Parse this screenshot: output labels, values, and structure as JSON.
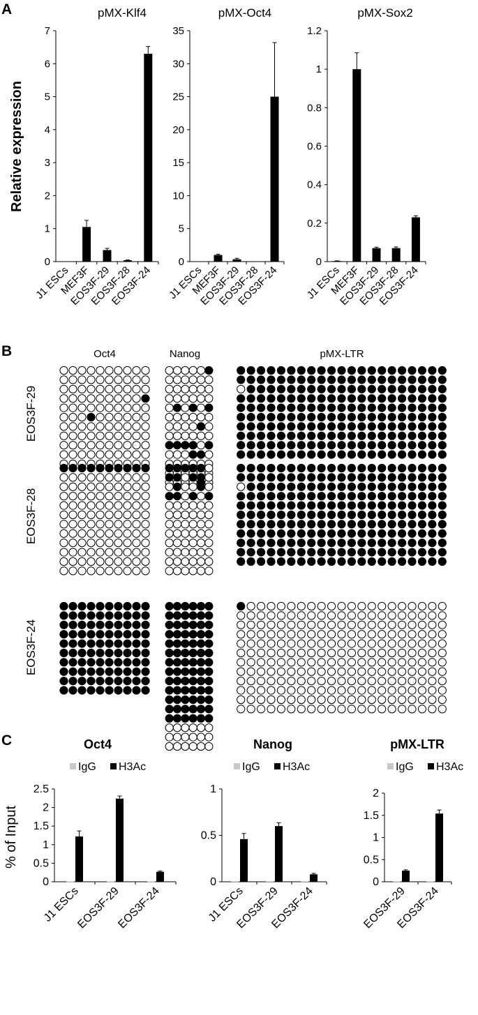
{
  "panels": {
    "a": "A",
    "b": "B",
    "c": "C"
  },
  "chart_data": [
    {
      "type": "bar",
      "id": "klf4",
      "title": "pMX-Klf4",
      "ylabel": "Relative expression",
      "categories": [
        "J1 ESCs",
        "MEF3F",
        "EOS3F-29",
        "EOS3F-28",
        "EOS3F-24"
      ],
      "values": [
        0.01,
        1.05,
        0.35,
        0.04,
        6.3
      ],
      "errors": [
        0,
        0.2,
        0.05,
        0.01,
        0.22
      ],
      "ylim": [
        0,
        7
      ],
      "ticks": [
        0,
        1,
        2,
        3,
        4,
        5,
        6,
        7
      ],
      "tick_labels": [
        "0",
        "1",
        "2",
        "3",
        "4",
        "5",
        "6",
        "7"
      ]
    },
    {
      "type": "bar",
      "id": "oct4",
      "title": "pMX-Oct4",
      "categories": [
        "J1 ESCs",
        "MEF3F",
        "EOS3F-29",
        "EOS3F-28",
        "EOS3F-24"
      ],
      "values": [
        0.05,
        1.0,
        0.35,
        0.05,
        25.0
      ],
      "errors": [
        0,
        0.12,
        0.15,
        0,
        8.2
      ],
      "ylim": [
        0,
        35
      ],
      "ticks": [
        0,
        5,
        10,
        15,
        20,
        25,
        30,
        35
      ],
      "tick_labels": [
        "0",
        "5",
        "10",
        "15",
        "20",
        "25",
        "30",
        "35"
      ]
    },
    {
      "type": "bar",
      "id": "sox2",
      "title": "pMX-Sox2",
      "categories": [
        "J1 ESCs",
        "MEF3F",
        "EOS3F-29",
        "EOS3F-28",
        "EOS3F-24"
      ],
      "values": [
        0.003,
        1.0,
        0.07,
        0.07,
        0.23
      ],
      "errors": [
        0.001,
        0.085,
        0.005,
        0.006,
        0.008
      ],
      "ylim": [
        0,
        1.2
      ],
      "ticks": [
        0,
        0.2,
        0.4,
        0.6,
        0.8,
        1,
        1.2
      ],
      "tick_labels": [
        "0",
        "0.2",
        "0.4",
        "0.6",
        "0.8",
        "1",
        "1.2"
      ]
    },
    {
      "type": "methylation-grid",
      "id": "bisulfite",
      "columns": [
        "Oct4",
        "Nanog",
        "pMX-LTR"
      ],
      "rows": [
        "EOS3F-29",
        "EOS3F-28",
        "EOS3F-24"
      ],
      "grids": [
        [
          [
            "0000000000",
            "0000000000",
            "0000000000",
            "0000000001",
            "0000000000",
            "0001000000",
            "0000000000",
            "0000000000",
            "0000000000",
            "0000000000",
            "0000000000"
          ],
          [
            "000001",
            "000000",
            "000000",
            "000000",
            "010101",
            "000000",
            "000010",
            "000000",
            "111101",
            "000110",
            "000000",
            "000000",
            "000010"
          ],
          [
            "111111111111111111111",
            "111111111111111111111",
            "011111111111111111111",
            "111111111111111111111",
            "111111111111111111111",
            "111111111111111111111",
            "111111111111111111111",
            "111111111111111111111",
            "111111111111111111111",
            "111111111111111111111"
          ]
        ],
        [
          [
            "1111111111",
            "0000000000",
            "0000000000",
            "0000000000",
            "0000000000",
            "0000000000",
            "0000000000",
            "0000000000",
            "0000000000",
            "0000000000",
            "0000000000",
            "0000000000"
          ],
          [
            "111110",
            "110110",
            "010010",
            "110101",
            "000000",
            "000000",
            "000000",
            "000000",
            "000000",
            "000000",
            "000000",
            "000000"
          ],
          [
            "111111111111111111111",
            "111111111111111111111",
            "011111111111111111111",
            "111111111111111111111",
            "111111111111111111111",
            "111111111111111111111",
            "111111111111111111111",
            "111111111111111111111",
            "111111111111111111111",
            "111111111111111111111",
            "111111111111111111111"
          ]
        ],
        [
          [
            "1111111111",
            "1111111111",
            "1111111111",
            "1111111111",
            "1111111111",
            "1111111111",
            "1111111111",
            "1111111111",
            "1111111111",
            "1111111111"
          ],
          [
            "111111",
            "111111",
            "111111",
            "111111",
            "111111",
            "111111",
            "111111",
            "111111",
            "111111",
            "111111",
            "111111",
            "111111",
            "111111",
            "000000",
            "000000",
            "000000"
          ],
          [
            "100000000000000000000",
            "000000000000000000000",
            "000000000000000000000",
            "000000000000000000000",
            "000000000000000000000",
            "000000000000000000000",
            "000000000000000000000",
            "000000000000000000000",
            "000000000000000000000",
            "000000000000000000000",
            "000000000000000000000",
            "000000000000000000000"
          ]
        ]
      ]
    },
    {
      "type": "grouped-bar",
      "id": "chip_oct4",
      "title": "Oct4",
      "ylabel": "% of Input",
      "legend": [
        "IgG",
        "H3Ac"
      ],
      "categories": [
        "J1 ESCs",
        "EOS3F-29",
        "EOS3F-24"
      ],
      "series": [
        {
          "name": "IgG",
          "values": [
            0.01,
            0.01,
            0.01
          ],
          "errors": [
            0,
            0,
            0
          ],
          "color": "#c8c8c8"
        },
        {
          "name": "H3Ac",
          "values": [
            1.22,
            2.24,
            0.27
          ],
          "errors": [
            0.15,
            0.07,
            0.02
          ],
          "color": "#000000"
        }
      ],
      "ylim": [
        0,
        2.5
      ],
      "ticks": [
        0,
        0.5,
        1,
        1.5,
        2,
        2.5
      ],
      "tick_labels": [
        "0",
        "0.5",
        "1",
        "1.5",
        "2",
        "2.5"
      ]
    },
    {
      "type": "grouped-bar",
      "id": "chip_nanog",
      "title": "Nanog",
      "legend": [
        "IgG",
        "H3Ac"
      ],
      "categories": [
        "J1 ESCs",
        "EOS3F-29",
        "EOS3F-24"
      ],
      "series": [
        {
          "name": "IgG",
          "values": [
            0.005,
            0.005,
            0.005
          ],
          "errors": [
            0,
            0,
            0
          ],
          "color": "#c8c8c8"
        },
        {
          "name": "H3Ac",
          "values": [
            0.46,
            0.6,
            0.08
          ],
          "errors": [
            0.06,
            0.035,
            0.01
          ],
          "color": "#000000"
        }
      ],
      "ylim": [
        0,
        1
      ],
      "ticks": [
        0,
        0.5,
        1
      ],
      "tick_labels": [
        "0",
        "0.5",
        "1"
      ]
    },
    {
      "type": "grouped-bar",
      "id": "chip_pmx",
      "title": "pMX-LTR",
      "legend": [
        "IgG",
        "H3Ac"
      ],
      "categories": [
        "EOS3F-29",
        "EOS3F-24"
      ],
      "series": [
        {
          "name": "IgG",
          "values": [
            0.01,
            0.01
          ],
          "errors": [
            0,
            0
          ],
          "color": "#c8c8c8"
        },
        {
          "name": "H3Ac",
          "values": [
            0.25,
            1.54
          ],
          "errors": [
            0.02,
            0.08
          ],
          "color": "#000000"
        }
      ],
      "ylim": [
        0,
        2
      ],
      "ticks": [
        0,
        0.5,
        1,
        1.5,
        2
      ],
      "tick_labels": [
        "0",
        "0.5",
        "1",
        "1.5",
        "2"
      ]
    }
  ]
}
